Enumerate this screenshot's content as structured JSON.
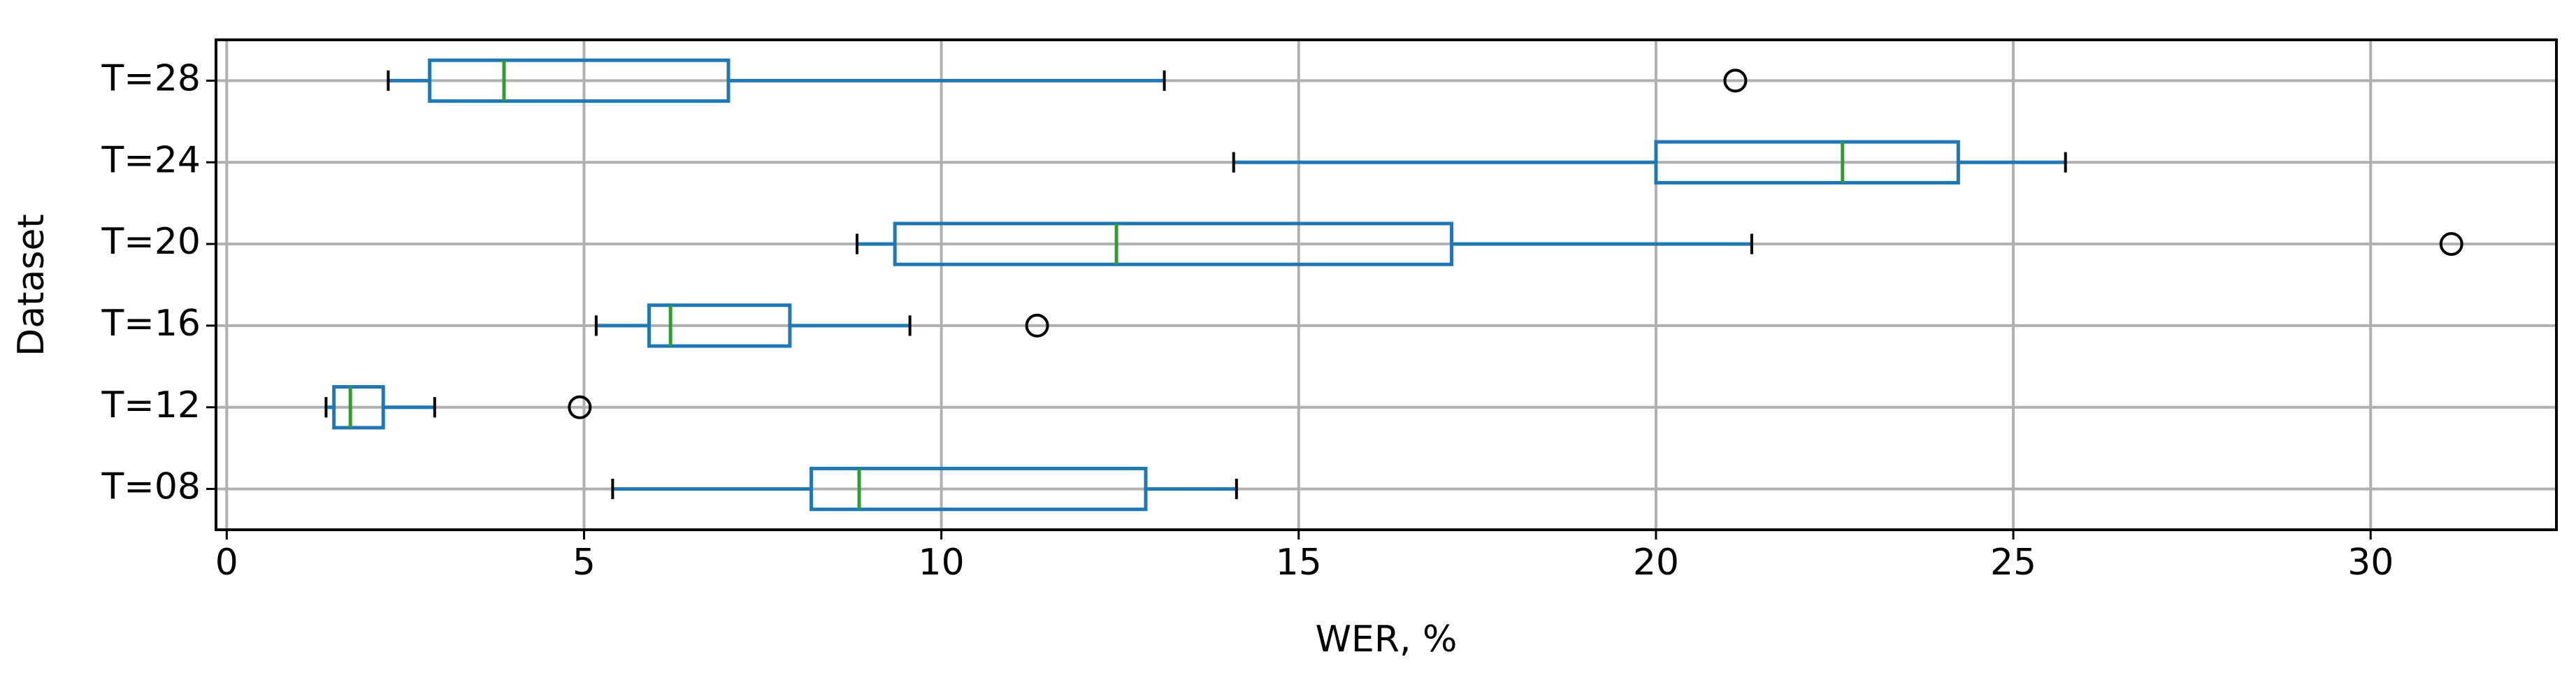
{
  "chart_data": {
    "type": "boxplot",
    "orientation": "horizontal",
    "x_label": "WER, %",
    "y_label": "Dataset",
    "categories": [
      "T=08",
      "T=12",
      "T=16",
      "T=20",
      "T=24",
      "T=28"
    ],
    "boxes": [
      {
        "whislo": 5.4,
        "q1": 8.18,
        "med": 8.85,
        "q3": 12.86,
        "whishi": 14.13,
        "fliers": []
      },
      {
        "whislo": 1.39,
        "q1": 1.5,
        "med": 1.73,
        "q3": 2.19,
        "whishi": 2.91,
        "fliers": [
          4.94
        ]
      },
      {
        "whislo": 5.17,
        "q1": 5.91,
        "med": 6.21,
        "q3": 7.88,
        "whishi": 9.56,
        "fliers": [
          11.34
        ]
      },
      {
        "whislo": 8.82,
        "q1": 9.35,
        "med": 12.45,
        "q3": 17.14,
        "whishi": 21.34,
        "fliers": [
          31.13
        ]
      },
      {
        "whislo": 14.09,
        "q1": 20.0,
        "med": 22.61,
        "q3": 24.23,
        "whishi": 25.73,
        "fliers": []
      },
      {
        "whislo": 2.26,
        "q1": 2.84,
        "med": 3.88,
        "q3": 7.02,
        "whishi": 13.12,
        "fliers": [
          21.11
        ]
      }
    ],
    "box_color": "#1f77b4",
    "median_color": "#2ca02c",
    "xlim": [
      -0.15,
      32.6
    ],
    "xticks": [
      0,
      5,
      10,
      15,
      20,
      25,
      30
    ],
    "grid": true
  }
}
